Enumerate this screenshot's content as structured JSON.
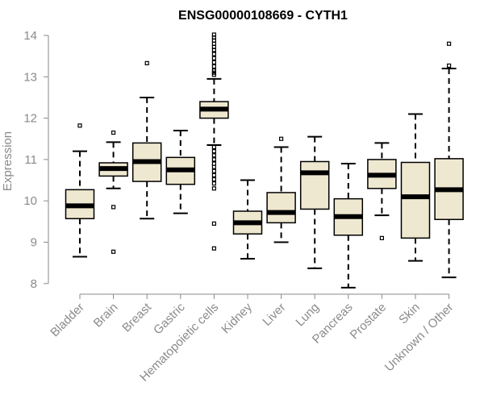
{
  "chart_data": {
    "type": "boxplot",
    "title": "ENSG00000108669 - CYTH1",
    "xlabel": "",
    "ylabel": "Expression",
    "ylim": [
      7.7,
      14.1
    ],
    "yticks": [
      8,
      9,
      10,
      11,
      12,
      13,
      14
    ],
    "categories": [
      "Bladder",
      "Brain",
      "Breast",
      "Gastric",
      "Hematopoietic cells",
      "Kidney",
      "Liver",
      "Lung",
      "Pancreas",
      "Prostate",
      "Skin",
      "Unknown / Other"
    ],
    "boxes": [
      {
        "name": "Bladder",
        "whisker_low": 8.65,
        "q1": 9.57,
        "median": 9.88,
        "q3": 10.27,
        "whisker_high": 11.2,
        "outliers": [
          11.82
        ]
      },
      {
        "name": "Brain",
        "whisker_low": 10.3,
        "q1": 10.6,
        "median": 10.78,
        "q3": 10.92,
        "whisker_high": 11.42,
        "outliers": [
          11.65,
          9.85,
          8.77
        ]
      },
      {
        "name": "Breast",
        "whisker_low": 9.57,
        "q1": 10.47,
        "median": 10.95,
        "q3": 11.4,
        "whisker_high": 12.5,
        "outliers": [
          13.33
        ]
      },
      {
        "name": "Gastric",
        "whisker_low": 9.7,
        "q1": 10.4,
        "median": 10.75,
        "q3": 11.05,
        "whisker_high": 11.7,
        "outliers": []
      },
      {
        "name": "Hematopoietic cells",
        "whisker_low": 11.35,
        "q1": 12.0,
        "median": 12.22,
        "q3": 12.4,
        "whisker_high": 12.95,
        "outliers": [
          14.02,
          13.95,
          13.88,
          13.8,
          13.72,
          13.65,
          13.55,
          13.45,
          13.35,
          13.25,
          13.15,
          13.1,
          13.05,
          11.3,
          11.2,
          11.1,
          11.0,
          10.9,
          10.82,
          10.72,
          10.62,
          10.52,
          10.42,
          10.3,
          9.45,
          8.85
        ]
      },
      {
        "name": "Kidney",
        "whisker_low": 8.6,
        "q1": 9.2,
        "median": 9.47,
        "q3": 9.75,
        "whisker_high": 10.5,
        "outliers": []
      },
      {
        "name": "Liver",
        "whisker_low": 9.0,
        "q1": 9.47,
        "median": 9.72,
        "q3": 10.2,
        "whisker_high": 11.3,
        "outliers": [
          11.5
        ]
      },
      {
        "name": "Lung",
        "whisker_low": 8.37,
        "q1": 9.8,
        "median": 10.68,
        "q3": 10.95,
        "whisker_high": 11.55,
        "outliers": []
      },
      {
        "name": "Pancreas",
        "whisker_low": 7.9,
        "q1": 9.17,
        "median": 9.62,
        "q3": 10.05,
        "whisker_high": 10.9,
        "outliers": []
      },
      {
        "name": "Prostate",
        "whisker_low": 9.65,
        "q1": 10.3,
        "median": 10.62,
        "q3": 11.0,
        "whisker_high": 11.4,
        "outliers": [
          9.1
        ]
      },
      {
        "name": "Skin",
        "whisker_low": 8.55,
        "q1": 9.1,
        "median": 10.1,
        "q3": 10.93,
        "whisker_high": 12.1,
        "outliers": []
      },
      {
        "name": "Unknown / Other",
        "whisker_low": 8.15,
        "q1": 9.55,
        "median": 10.27,
        "q3": 11.02,
        "whisker_high": 13.2,
        "outliers": [
          13.8,
          13.27
        ]
      }
    ],
    "colors": {
      "box_fill": "#efe8d0",
      "stroke": "#000000",
      "axis": "#8a8a8a",
      "text": "#8a8a8a"
    }
  }
}
